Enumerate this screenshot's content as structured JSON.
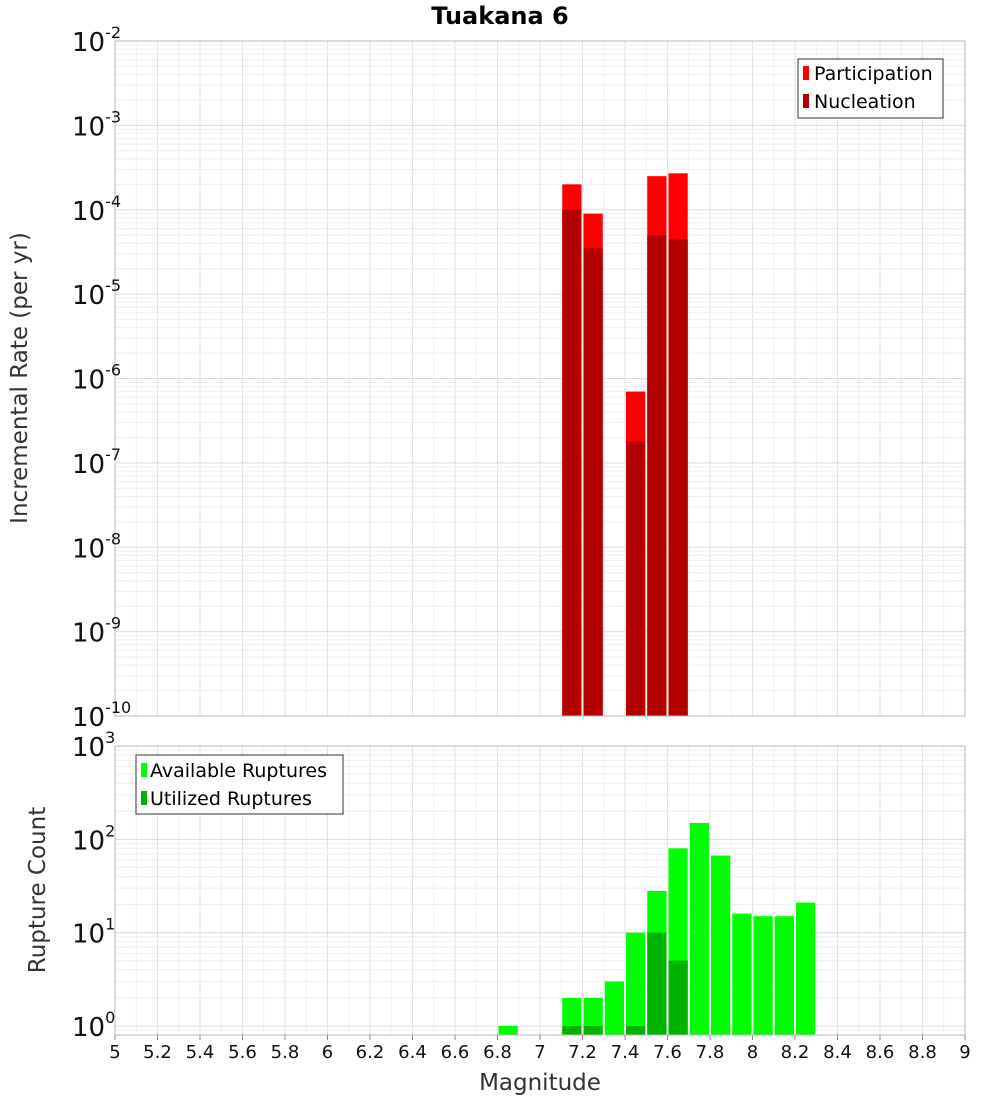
{
  "chart_data": [
    {
      "type": "bar",
      "title": "Tuakana 6",
      "ylabel": "Incremental Rate (per yr)",
      "yscale": "log",
      "ylim": [
        1e-10,
        0.01
      ],
      "ytick_bases": [
        "10",
        "10",
        "10",
        "10",
        "10",
        "10",
        "10",
        "10",
        "10"
      ],
      "ytick_exponents": [
        "-10",
        "-9",
        "-8",
        "-7",
        "-6",
        "-5",
        "-4",
        "-3",
        "-2"
      ],
      "legend_position": "top-right",
      "series": [
        {
          "name": "Participation",
          "color": "#ff0000",
          "x": [
            7.15,
            7.25,
            7.45,
            7.55,
            7.65
          ],
          "values": [
            0.0002,
            9e-05,
            7e-07,
            0.00025,
            0.00027
          ]
        },
        {
          "name": "Nucleation",
          "color": "#b30000",
          "x": [
            7.15,
            7.25,
            7.45,
            7.55,
            7.65
          ],
          "values": [
            0.0001,
            3.5e-05,
            1.8e-07,
            5e-05,
            4.5e-05
          ]
        }
      ]
    },
    {
      "type": "bar",
      "xlabel": "Magnitude",
      "ylabel": "Rupture Count",
      "yscale": "log",
      "ylim": [
        0.8,
        1000
      ],
      "ytick_bases": [
        "10",
        "10",
        "10",
        "10"
      ],
      "ytick_exponents": [
        "0",
        "1",
        "2",
        "3"
      ],
      "legend_position": "top-left",
      "xlim": [
        5,
        9
      ],
      "xticks": [
        "5",
        "5.2",
        "5.4",
        "5.6",
        "5.8",
        "6",
        "6.2",
        "6.4",
        "6.6",
        "6.8",
        "7",
        "7.2",
        "7.4",
        "7.6",
        "7.8",
        "8",
        "8.2",
        "8.4",
        "8.6",
        "8.8",
        "9"
      ],
      "series": [
        {
          "name": "Available Ruptures",
          "color": "#00ff00",
          "x": [
            6.85,
            7.15,
            7.25,
            7.35,
            7.45,
            7.55,
            7.65,
            7.75,
            7.85,
            7.95,
            8.05,
            8.15,
            8.25
          ],
          "values": [
            1,
            2,
            2,
            3,
            10,
            28,
            80,
            150,
            67,
            16,
            15,
            15,
            21
          ]
        },
        {
          "name": "Utilized Ruptures",
          "color": "#00b300",
          "x": [
            7.15,
            7.25,
            7.45,
            7.55,
            7.65
          ],
          "values": [
            1,
            1,
            1,
            10,
            5
          ]
        }
      ]
    }
  ]
}
